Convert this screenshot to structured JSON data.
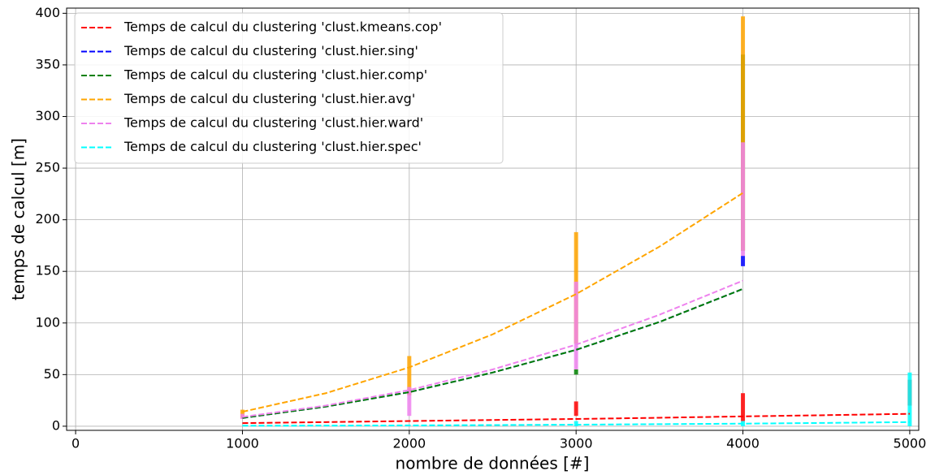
{
  "chart_data": {
    "type": "line",
    "xlabel": "nombre de données [#]",
    "ylabel": "temps de calcul [m]",
    "x": [
      1000,
      1500,
      2000,
      2500,
      3000,
      3500,
      4000,
      4500,
      5000
    ],
    "xlim": [
      -54,
      5054
    ],
    "ylim": [
      -4,
      405
    ],
    "xticks": [
      0,
      1000,
      2000,
      3000,
      4000,
      5000
    ],
    "yticks": [
      0,
      50,
      100,
      150,
      200,
      250,
      300,
      350,
      400
    ],
    "grid": true,
    "legend": "upper left",
    "series": [
      {
        "name": "Temps de calcul du clustering 'clust.kmeans.cop'",
        "color": "#ff0000",
        "values": [
          3,
          4,
          5,
          6,
          7,
          8.2,
          9.5,
          10.7,
          12
        ],
        "points_x": [
          3000,
          4000,
          5000
        ],
        "points_low": [
          10,
          5,
          20
        ],
        "points_high": [
          24,
          32,
          45
        ]
      },
      {
        "name": "Temps de calcul du clustering 'clust.hier.sing'",
        "color": "#0000ff",
        "values": [
          8,
          19,
          33,
          52,
          74,
          101,
          133,
          null,
          null
        ],
        "points_x": [
          4000
        ],
        "points_low": [
          155
        ],
        "points_high": [
          165
        ]
      },
      {
        "name": "Temps de calcul du clustering 'clust.hier.comp'",
        "color": "#008000",
        "values": [
          8,
          19,
          33,
          52,
          74,
          101,
          133,
          null,
          null
        ],
        "points_x": [
          3000,
          4000
        ],
        "points_low": [
          50,
          170
        ],
        "points_high": [
          55,
          360
        ]
      },
      {
        "name": "Temps de calcul du clustering 'clust.hier.avg'",
        "color": "#ffa500",
        "values": [
          14,
          32,
          57,
          89,
          128,
          174,
          226,
          null,
          null
        ],
        "points_x": [
          1000,
          2000,
          3000,
          4000
        ],
        "points_low": [
          8,
          30,
          80,
          170
        ],
        "points_high": [
          16,
          68,
          188,
          397
        ]
      },
      {
        "name": "Temps de calcul du clustering 'clust.hier.ward'",
        "color": "#ee82ee",
        "values": [
          9,
          20,
          35,
          55,
          79,
          108,
          141,
          null,
          null
        ],
        "points_x": [
          1000,
          2000,
          3000,
          4000
        ],
        "points_low": [
          7,
          10,
          55,
          165
        ],
        "points_high": [
          12,
          38,
          140,
          275
        ]
      },
      {
        "name": "Temps de calcul du clustering 'clust.hier.spec'",
        "color": "#00ffff",
        "values": [
          0.5,
          0.6,
          0.8,
          1.1,
          1.5,
          2,
          2.5,
          3.2,
          4
        ],
        "points_x": [
          3000,
          4000,
          5000
        ],
        "points_low": [
          0,
          0,
          0
        ],
        "points_high": [
          5,
          5,
          52
        ]
      }
    ]
  }
}
